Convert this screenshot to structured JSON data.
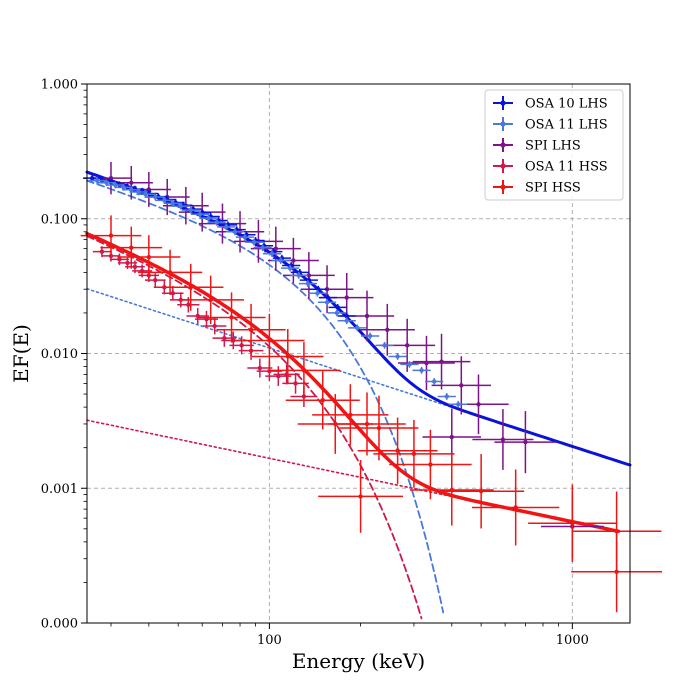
{
  "chart_data": {
    "type": "scatter",
    "title": "",
    "xlabel": "Energy (keV)",
    "ylabel": "EF(E)",
    "xscale": "log",
    "yscale": "log",
    "xlim": [
      25,
      1550
    ],
    "ylim": [
      0.0001,
      1.0
    ],
    "grid": true,
    "x_ticks": [
      {
        "value": 100,
        "label": "100"
      },
      {
        "value": 1000,
        "label": "1000"
      }
    ],
    "y_ticks": [
      {
        "value": 0.0001,
        "label": "0.000"
      },
      {
        "value": 0.001,
        "label": "0.001"
      },
      {
        "value": 0.01,
        "label": "0.010"
      },
      {
        "value": 0.1,
        "label": "0.100"
      },
      {
        "value": 1.0,
        "label": "1.000"
      }
    ],
    "legend_position": "top-right",
    "series": [
      {
        "name": "OSA 10 LHS",
        "color": "#0a14d8",
        "points": [
          [
            26,
            0.2
          ],
          [
            28,
            0.193
          ],
          [
            30,
            0.186
          ],
          [
            32,
            0.179
          ],
          [
            34,
            0.172
          ],
          [
            36,
            0.166
          ],
          [
            38,
            0.16
          ],
          [
            40,
            0.154
          ],
          [
            43,
            0.146
          ],
          [
            46,
            0.139
          ],
          [
            49,
            0.132
          ],
          [
            52,
            0.126
          ],
          [
            56,
            0.118
          ],
          [
            60,
            0.111
          ],
          [
            64,
            0.104
          ],
          [
            68,
            0.097
          ],
          [
            73,
            0.09
          ],
          [
            78,
            0.083
          ],
          [
            84,
            0.076
          ],
          [
            90,
            0.069
          ],
          [
            96,
            0.063
          ],
          [
            103,
            0.057
          ],
          [
            110,
            0.051
          ],
          [
            118,
            0.045
          ],
          [
            126,
            0.04
          ],
          [
            135,
            0.035
          ],
          [
            145,
            0.03
          ],
          [
            156,
            0.026
          ],
          [
            168,
            0.022
          ],
          [
            180,
            0.019
          ]
        ]
      },
      {
        "name": "OSA 11 LHS",
        "color": "#4a78dc",
        "points": [
          [
            27,
            0.192
          ],
          [
            29,
            0.185
          ],
          [
            31,
            0.178
          ],
          [
            33,
            0.171
          ],
          [
            35,
            0.164
          ],
          [
            37,
            0.158
          ],
          [
            39,
            0.152
          ],
          [
            42,
            0.145
          ],
          [
            45,
            0.137
          ],
          [
            48,
            0.13
          ],
          [
            51,
            0.124
          ],
          [
            55,
            0.116
          ],
          [
            59,
            0.108
          ],
          [
            63,
            0.101
          ],
          [
            67,
            0.094
          ],
          [
            72,
            0.087
          ],
          [
            77,
            0.08
          ],
          [
            83,
            0.073
          ],
          [
            89,
            0.067
          ],
          [
            95,
            0.061
          ],
          [
            102,
            0.055
          ],
          [
            109,
            0.049
          ],
          [
            117,
            0.043
          ],
          [
            125,
            0.038
          ],
          [
            134,
            0.033
          ],
          [
            144,
            0.028
          ],
          [
            155,
            0.024
          ],
          [
            167,
            0.02
          ],
          [
            180,
            0.0175
          ],
          [
            195,
            0.0155
          ],
          [
            215,
            0.0135
          ],
          [
            240,
            0.0115
          ],
          [
            265,
            0.0095
          ],
          [
            290,
            0.0083
          ],
          [
            318,
            0.0075
          ],
          [
            350,
            0.0062
          ],
          [
            385,
            0.0048
          ],
          [
            420,
            0.0042
          ]
        ]
      },
      {
        "name": "SPI LHS",
        "color": "#7a1488",
        "points": [
          [
            30,
            0.2
          ],
          [
            35,
            0.185
          ],
          [
            40,
            0.165
          ],
          [
            46,
            0.145
          ],
          [
            53,
            0.125
          ],
          [
            60,
            0.112
          ],
          [
            70,
            0.092
          ],
          [
            80,
            0.08
          ],
          [
            92,
            0.068
          ],
          [
            105,
            0.06
          ],
          [
            120,
            0.049
          ],
          [
            135,
            0.038
          ],
          [
            155,
            0.03
          ],
          [
            180,
            0.026
          ],
          [
            210,
            0.019
          ],
          [
            245,
            0.015
          ],
          [
            285,
            0.0115
          ],
          [
            330,
            0.0085
          ],
          [
            370,
            0.0087
          ],
          [
            400,
            0.0024
          ],
          [
            430,
            0.0058
          ],
          [
            490,
            0.0042
          ],
          [
            590,
            0.0023
          ],
          [
            700,
            0.0022
          ],
          [
            1000,
            0.00052
          ]
        ]
      },
      {
        "name": "OSA 11 HSS",
        "color": "#d0184a",
        "points": [
          [
            28,
            0.057
          ],
          [
            30,
            0.053
          ],
          [
            32,
            0.05
          ],
          [
            34,
            0.047
          ],
          [
            36,
            0.044
          ],
          [
            38,
            0.041
          ],
          [
            40,
            0.038
          ],
          [
            42,
            0.035
          ],
          [
            45,
            0.031
          ],
          [
            48,
            0.028
          ],
          [
            51,
            0.025
          ],
          [
            54,
            0.023
          ],
          [
            58,
            0.019
          ],
          [
            62,
            0.018
          ],
          [
            66,
            0.016
          ],
          [
            71,
            0.013
          ],
          [
            76,
            0.0125
          ],
          [
            81,
            0.0115
          ],
          [
            87,
            0.0105
          ],
          [
            93,
            0.0078
          ],
          [
            100,
            0.0074
          ],
          [
            107,
            0.0068
          ],
          [
            114,
            0.007
          ],
          [
            122,
            0.006
          ],
          [
            130,
            0.0048
          ]
        ]
      },
      {
        "name": "SPI HSS",
        "color": "#f01414",
        "points": [
          [
            30,
            0.075
          ],
          [
            35,
            0.061
          ],
          [
            40,
            0.052
          ],
          [
            47,
            0.04
          ],
          [
            55,
            0.031
          ],
          [
            64,
            0.025
          ],
          [
            75,
            0.0185
          ],
          [
            87,
            0.015
          ],
          [
            100,
            0.0125
          ],
          [
            115,
            0.0095
          ],
          [
            130,
            0.0075
          ],
          [
            150,
            0.0045
          ],
          [
            165,
            0.003
          ],
          [
            185,
            0.0035
          ],
          [
            210,
            0.003
          ],
          [
            230,
            0.0028
          ],
          [
            265,
            0.0019
          ],
          [
            300,
            0.0018
          ],
          [
            340,
            0.0015
          ],
          [
            400,
            0.00097
          ],
          [
            200,
            0.00087
          ],
          [
            500,
            0.00095
          ],
          [
            650,
            0.00072
          ],
          [
            1000,
            0.00055
          ],
          [
            1400,
            0.00048
          ],
          [
            1400,
            0.00024
          ]
        ]
      }
    ],
    "model_lines": [
      {
        "name": "LHS total model",
        "color": "#0a14d8",
        "style": "solid"
      },
      {
        "name": "LHS cutoff component",
        "color": "#4a78dc",
        "style": "dashed"
      },
      {
        "name": "LHS power-law component",
        "color": "#4a78dc",
        "style": "dotted"
      },
      {
        "name": "HSS total model",
        "color": "#f01414",
        "style": "solid"
      },
      {
        "name": "HSS cutoff component",
        "color": "#d0184a",
        "style": "dashed"
      },
      {
        "name": "HSS power-law component",
        "color": "#d0184a",
        "style": "dotted"
      }
    ]
  }
}
